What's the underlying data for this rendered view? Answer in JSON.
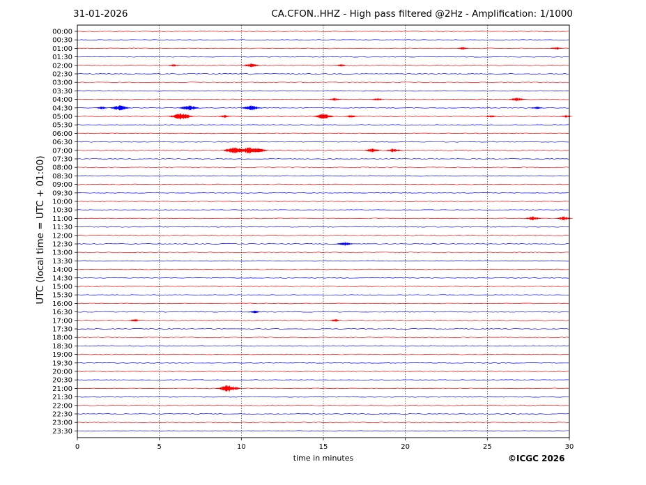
{
  "header": {
    "date": "31-01-2026",
    "title": "CA.CFON..HHZ - High pass filtered @2Hz - Amplification: 1/1000"
  },
  "footer": {
    "copyright": "©ICGC 2026"
  },
  "chart_data": {
    "type": "line",
    "title": "CA.CFON..HHZ - High pass filtered @2Hz - Amplification: 1/1000",
    "xlabel": "time in minutes",
    "ylabel": "UTC (local time = UTC + 01:00)",
    "xlim": [
      0,
      30
    ],
    "xticks": [
      0,
      5,
      10,
      15,
      20,
      25,
      30
    ],
    "yticks": [
      "00:00",
      "00:30",
      "01:00",
      "01:30",
      "02:00",
      "02:30",
      "03:00",
      "03:30",
      "04:00",
      "04:30",
      "05:00",
      "05:30",
      "06:00",
      "06:30",
      "07:00",
      "07:30",
      "08:00",
      "08:30",
      "09:00",
      "09:30",
      "10:00",
      "10:30",
      "11:00",
      "11:30",
      "12:00",
      "12:30",
      "13:00",
      "13:30",
      "14:00",
      "14:30",
      "15:00",
      "15:30",
      "16:00",
      "16:30",
      "17:00",
      "17:30",
      "18:00",
      "18:30",
      "19:00",
      "19:30",
      "20:00",
      "20:30",
      "21:00",
      "21:30",
      "22:00",
      "22:30",
      "23:00",
      "23:30"
    ],
    "grid": "vertical dotted at 5-minute marks",
    "colors": {
      "even_trace": "#ff0000",
      "odd_trace": "#0000ff",
      "grid": "#000000"
    },
    "bursts": [
      {
        "row": "01:00",
        "minute": 23.5,
        "amplitude": 2
      },
      {
        "row": "01:00",
        "minute": 29.2,
        "amplitude": 2
      },
      {
        "row": "02:00",
        "minute": 5.9,
        "amplitude": 2
      },
      {
        "row": "02:00",
        "minute": 10.6,
        "amplitude": 3
      },
      {
        "row": "02:00",
        "minute": 16.1,
        "amplitude": 2
      },
      {
        "row": "04:00",
        "minute": 15.7,
        "amplitude": 2
      },
      {
        "row": "04:00",
        "minute": 18.3,
        "amplitude": 2
      },
      {
        "row": "04:00",
        "minute": 26.8,
        "amplitude": 3
      },
      {
        "row": "04:30",
        "minute": 1.5,
        "amplitude": 2
      },
      {
        "row": "04:30",
        "minute": 2.6,
        "amplitude": 4
      },
      {
        "row": "04:30",
        "minute": 6.8,
        "amplitude": 4
      },
      {
        "row": "04:30",
        "minute": 10.6,
        "amplitude": 4
      },
      {
        "row": "04:30",
        "minute": 28.0,
        "amplitude": 2
      },
      {
        "row": "05:00",
        "minute": 6.3,
        "amplitude": 5
      },
      {
        "row": "05:00",
        "minute": 9.0,
        "amplitude": 2
      },
      {
        "row": "05:00",
        "minute": 15.0,
        "amplitude": 4
      },
      {
        "row": "05:00",
        "minute": 16.7,
        "amplitude": 2
      },
      {
        "row": "05:00",
        "minute": 25.2,
        "amplitude": 2
      },
      {
        "row": "05:00",
        "minute": 29.8,
        "amplitude": 2
      },
      {
        "row": "07:00",
        "minute": 9.6,
        "amplitude": 5
      },
      {
        "row": "07:00",
        "minute": 10.5,
        "amplitude": 5
      },
      {
        "row": "07:00",
        "minute": 11.0,
        "amplitude": 4
      },
      {
        "row": "07:00",
        "minute": 18.0,
        "amplitude": 3
      },
      {
        "row": "07:00",
        "minute": 19.3,
        "amplitude": 3
      },
      {
        "row": "11:00",
        "minute": 27.8,
        "amplitude": 3
      },
      {
        "row": "11:00",
        "minute": 29.7,
        "amplitude": 3
      },
      {
        "row": "12:30",
        "minute": 16.3,
        "amplitude": 3
      },
      {
        "row": "16:30",
        "minute": 10.8,
        "amplitude": 2
      },
      {
        "row": "17:00",
        "minute": 3.5,
        "amplitude": 2
      },
      {
        "row": "17:00",
        "minute": 15.7,
        "amplitude": 2
      },
      {
        "row": "21:00",
        "minute": 9.2,
        "amplitude": 5
      }
    ]
  }
}
